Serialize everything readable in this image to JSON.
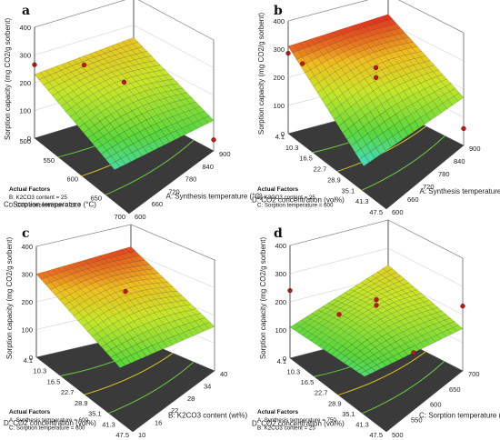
{
  "figure": {
    "type": "response-surface-3d",
    "zlabel": "Sorption capacity (mg CO2/g sorbent)",
    "z_ticks": [
      "0",
      "100",
      "200",
      "300",
      "400"
    ],
    "actual_factors_heading": "Actual Factors"
  },
  "chart_data": [
    {
      "type": "surface",
      "panel": "a",
      "xlabel": "A: Synthesis temperature (°C)",
      "ylabel": "C: Sorption temperature (°C)",
      "zlabel": "Sorption capacity (mg CO2/g sorbent)",
      "x_ticks": [
        "600",
        "660",
        "720",
        "780",
        "840",
        "900"
      ],
      "y_ticks": [
        "500",
        "550",
        "600",
        "650",
        "700"
      ],
      "z_ticks": [
        "0",
        "100",
        "200",
        "300",
        "400"
      ],
      "zlim": [
        0,
        400
      ],
      "actual_factors": [
        "B: K2CO3 content = 25",
        "D: CO2 concentration = 25.8"
      ],
      "surface_corners": {
        "front": 40,
        "right": 110,
        "left": 230,
        "back": 255
      },
      "design_points": [
        {
          "x": 600,
          "y": 700,
          "z": 265
        },
        {
          "x": 600,
          "y": 600,
          "z": 210
        },
        {
          "x": 750,
          "y": 600,
          "z": 225
        },
        {
          "x": 900,
          "y": 500,
          "z": 40
        }
      ]
    },
    {
      "type": "surface",
      "panel": "b",
      "xlabel": "A: Synthesis temperature (°C)",
      "ylabel": "D: CO2 concentration (vol%)",
      "zlabel": "Sorption capacity (mg CO2/g sorbent)",
      "x_ticks": [
        "600",
        "660",
        "720",
        "780",
        "840",
        "900"
      ],
      "y_ticks": [
        "4.1",
        "10.3",
        "16.5",
        "22.7",
        "28.9",
        "35.1",
        "41.3",
        "47.5"
      ],
      "z_ticks": [
        "0",
        "100",
        "200",
        "300",
        "400"
      ],
      "zlim": [
        0,
        400
      ],
      "actual_factors": [
        "B: K2CO3 content = 25",
        "C: Sorption temperature = 600"
      ],
      "surface_corners": {
        "front": 20,
        "right": 170,
        "left": 310,
        "back": 330
      },
      "design_points": [
        {
          "x": 600,
          "y": 47.5,
          "z": 285
        },
        {
          "x": 600,
          "y": 41.3,
          "z": 235
        },
        {
          "x": 750,
          "y": 25.8,
          "z": 255
        },
        {
          "x": 750,
          "y": 25.8,
          "z": 220
        },
        {
          "x": 900,
          "y": 4.1,
          "z": 60
        }
      ]
    },
    {
      "type": "surface",
      "panel": "c",
      "xlabel": "B: K2CO3 content (wt%)",
      "ylabel": "D: CO2 concentration (vol%)",
      "zlabel": "Sorption capacity (mg CO2/g sorbent)",
      "x_ticks": [
        "10",
        "16",
        "22",
        "28",
        "34",
        "40"
      ],
      "y_ticks": [
        "4.1",
        "10.3",
        "16.5",
        "22.7",
        "28.9",
        "35.1",
        "41.3",
        "47.5"
      ],
      "z_ticks": [
        "0",
        "100",
        "200",
        "300",
        "400"
      ],
      "zlim": [
        0,
        400
      ],
      "actual_factors": [
        "A: Synthesis temperature = 600",
        "C: Sorption temperature = 600"
      ],
      "surface_corners": {
        "front": 90,
        "right": 160,
        "left": 300,
        "back": 320
      },
      "design_points": [
        {
          "x": 25,
          "y": 25.8,
          "z": 262
        }
      ]
    },
    {
      "type": "surface",
      "panel": "d",
      "xlabel": "C: Sorption temperature (°C)",
      "ylabel": "D: CO2 concentration (vol%)",
      "zlabel": "Sorption capacity (mg CO2/g sorbent)",
      "x_ticks": [
        "500",
        "550",
        "600",
        "650",
        "700"
      ],
      "y_ticks": [
        "4.1",
        "10.3",
        "16.5",
        "22.7",
        "28.9",
        "35.1",
        "41.3",
        "47.5"
      ],
      "z_ticks": [
        "0",
        "100",
        "200",
        "300",
        "400"
      ],
      "zlim": [
        0,
        400
      ],
      "actual_factors": [
        "A: Synthesis temperature = 750",
        "B: K2CO3 content = 25"
      ],
      "surface_corners": {
        "front": 70,
        "right": 150,
        "left": 110,
        "back": 240
      },
      "design_points": [
        {
          "x": 500,
          "y": 47.5,
          "z": 240
        },
        {
          "x": 600,
          "y": 25.8,
          "z": 230
        },
        {
          "x": 600,
          "y": 25.8,
          "z": 210
        },
        {
          "x": 700,
          "y": 4.1,
          "z": 230
        },
        {
          "x": 500,
          "y": 25.8,
          "z": 110
        },
        {
          "x": 700,
          "y": 25.8,
          "z": 110
        }
      ]
    }
  ]
}
